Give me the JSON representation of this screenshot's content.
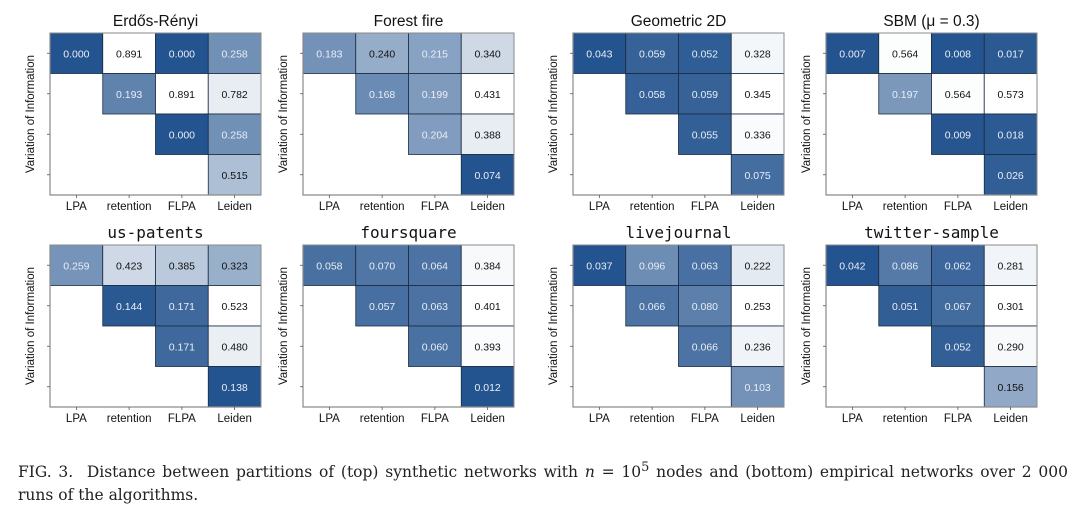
{
  "chart_data": [
    {
      "type": "heatmap",
      "title": "Erdős-Rényi",
      "title_style": "sans",
      "xlabels": [
        "LPA",
        "retention",
        "FLPA",
        "Leiden"
      ],
      "ylabel": "Variation of Information",
      "values": [
        [
          0.0,
          0.891,
          0.0,
          0.258
        ],
        [
          null,
          0.193,
          0.891,
          0.782
        ],
        [
          null,
          null,
          0.0,
          0.258
        ],
        [
          null,
          null,
          null,
          0.515
        ]
      ]
    },
    {
      "type": "heatmap",
      "title": "Forest fire",
      "title_style": "sans",
      "xlabels": [
        "LPA",
        "retention",
        "FLPA",
        "Leiden"
      ],
      "ylabel": "Variation of Information",
      "values": [
        [
          0.183,
          0.24,
          0.215,
          0.34
        ],
        [
          null,
          0.168,
          0.199,
          0.431
        ],
        [
          null,
          null,
          0.204,
          0.388
        ],
        [
          null,
          null,
          null,
          0.074
        ]
      ]
    },
    {
      "type": "heatmap",
      "title": "Geometric 2D",
      "title_style": "sans",
      "xlabels": [
        "LPA",
        "retention",
        "FLPA",
        "Leiden"
      ],
      "ylabel": "Variation of Information",
      "values": [
        [
          0.043,
          0.059,
          0.052,
          0.328
        ],
        [
          null,
          0.058,
          0.059,
          0.345
        ],
        [
          null,
          null,
          0.055,
          0.336
        ],
        [
          null,
          null,
          null,
          0.075
        ]
      ]
    },
    {
      "type": "heatmap",
      "title": "SBM (μ = 0.3)",
      "title_style": "sans",
      "xlabels": [
        "LPA",
        "retention",
        "FLPA",
        "Leiden"
      ],
      "ylabel": "Variation of Information",
      "values": [
        [
          0.007,
          0.564,
          0.008,
          0.017
        ],
        [
          null,
          0.197,
          0.564,
          0.573
        ],
        [
          null,
          null,
          0.009,
          0.018
        ],
        [
          null,
          null,
          null,
          0.026
        ]
      ]
    },
    {
      "type": "heatmap",
      "title": "us-patents",
      "title_style": "mono",
      "xlabels": [
        "LPA",
        "retention",
        "FLPA",
        "Leiden"
      ],
      "ylabel": "Variation of Information",
      "values": [
        [
          0.259,
          0.423,
          0.385,
          0.323
        ],
        [
          null,
          0.144,
          0.171,
          0.523
        ],
        [
          null,
          null,
          0.171,
          0.48
        ],
        [
          null,
          null,
          null,
          0.138
        ]
      ]
    },
    {
      "type": "heatmap",
      "title": "foursquare",
      "title_style": "mono",
      "xlabels": [
        "LPA",
        "retention",
        "FLPA",
        "Leiden"
      ],
      "ylabel": "Variation of Information",
      "values": [
        [
          0.058,
          0.07,
          0.064,
          0.384
        ],
        [
          null,
          0.057,
          0.063,
          0.401
        ],
        [
          null,
          null,
          0.06,
          0.393
        ],
        [
          null,
          null,
          null,
          0.012
        ]
      ]
    },
    {
      "type": "heatmap",
      "title": "livejournal",
      "title_style": "mono",
      "xlabels": [
        "LPA",
        "retention",
        "FLPA",
        "Leiden"
      ],
      "ylabel": "Variation of Information",
      "values": [
        [
          0.037,
          0.096,
          0.063,
          0.222
        ],
        [
          null,
          0.066,
          0.08,
          0.253
        ],
        [
          null,
          null,
          0.066,
          0.236
        ],
        [
          null,
          null,
          null,
          0.103
        ]
      ]
    },
    {
      "type": "heatmap",
      "title": "twitter-sample",
      "title_style": "mono",
      "xlabels": [
        "LPA",
        "retention",
        "FLPA",
        "Leiden"
      ],
      "ylabel": "Variation of Information",
      "values": [
        [
          0.042,
          0.086,
          0.062,
          0.281
        ],
        [
          null,
          0.051,
          0.067,
          0.301
        ],
        [
          null,
          null,
          0.052,
          0.29
        ],
        [
          null,
          null,
          null,
          0.156
        ]
      ]
    }
  ],
  "colors": {
    "dark": "#24548f",
    "light": "#ffffff",
    "border": "#1b2b40",
    "frame": "#8a8a8a"
  },
  "caption": {
    "label": "FIG. 3.",
    "text1": "Distance between partitions of (top) synthetic networks with",
    "var": "n",
    "eq": " = 10",
    "exp": "5",
    "text2": "nodes and (bottom) empirical networks over 2 000 runs of the algorithms."
  }
}
